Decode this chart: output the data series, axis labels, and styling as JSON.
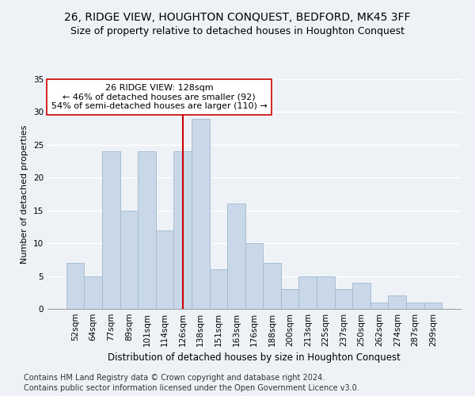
{
  "title1": "26, RIDGE VIEW, HOUGHTON CONQUEST, BEDFORD, MK45 3FF",
  "title2": "Size of property relative to detached houses in Houghton Conquest",
  "xlabel": "Distribution of detached houses by size in Houghton Conquest",
  "ylabel": "Number of detached properties",
  "categories": [
    "52sqm",
    "64sqm",
    "77sqm",
    "89sqm",
    "101sqm",
    "114sqm",
    "126sqm",
    "138sqm",
    "151sqm",
    "163sqm",
    "176sqm",
    "188sqm",
    "200sqm",
    "213sqm",
    "225sqm",
    "237sqm",
    "250sqm",
    "262sqm",
    "274sqm",
    "287sqm",
    "299sqm"
  ],
  "values": [
    7,
    5,
    24,
    15,
    24,
    12,
    24,
    29,
    6,
    16,
    10,
    7,
    3,
    5,
    5,
    3,
    4,
    1,
    2,
    1,
    1
  ],
  "bar_color": "#c8d8e8",
  "bar_edgecolor": "#a0b8cc",
  "vline_x_index": 6,
  "vline_color": "#cc0000",
  "annotation_line1": "26 RIDGE VIEW: 128sqm",
  "annotation_line2": "← 46% of detached houses are smaller (92)",
  "annotation_line3": "54% of semi-detached houses are larger (110) →",
  "annotation_box_edgecolor": "#cc0000",
  "ylim": [
    0,
    35
  ],
  "yticks": [
    0,
    5,
    10,
    15,
    20,
    25,
    30,
    35
  ],
  "footer1": "Contains HM Land Registry data © Crown copyright and database right 2024.",
  "footer2": "Contains public sector information licensed under the Open Government Licence v3.0.",
  "background_color": "#eef2f7",
  "grid_color": "#ffffff",
  "title1_fontsize": 10,
  "title2_fontsize": 9,
  "xlabel_fontsize": 8.5,
  "ylabel_fontsize": 8,
  "tick_fontsize": 7.5,
  "annotation_fontsize": 8,
  "footer_fontsize": 7
}
